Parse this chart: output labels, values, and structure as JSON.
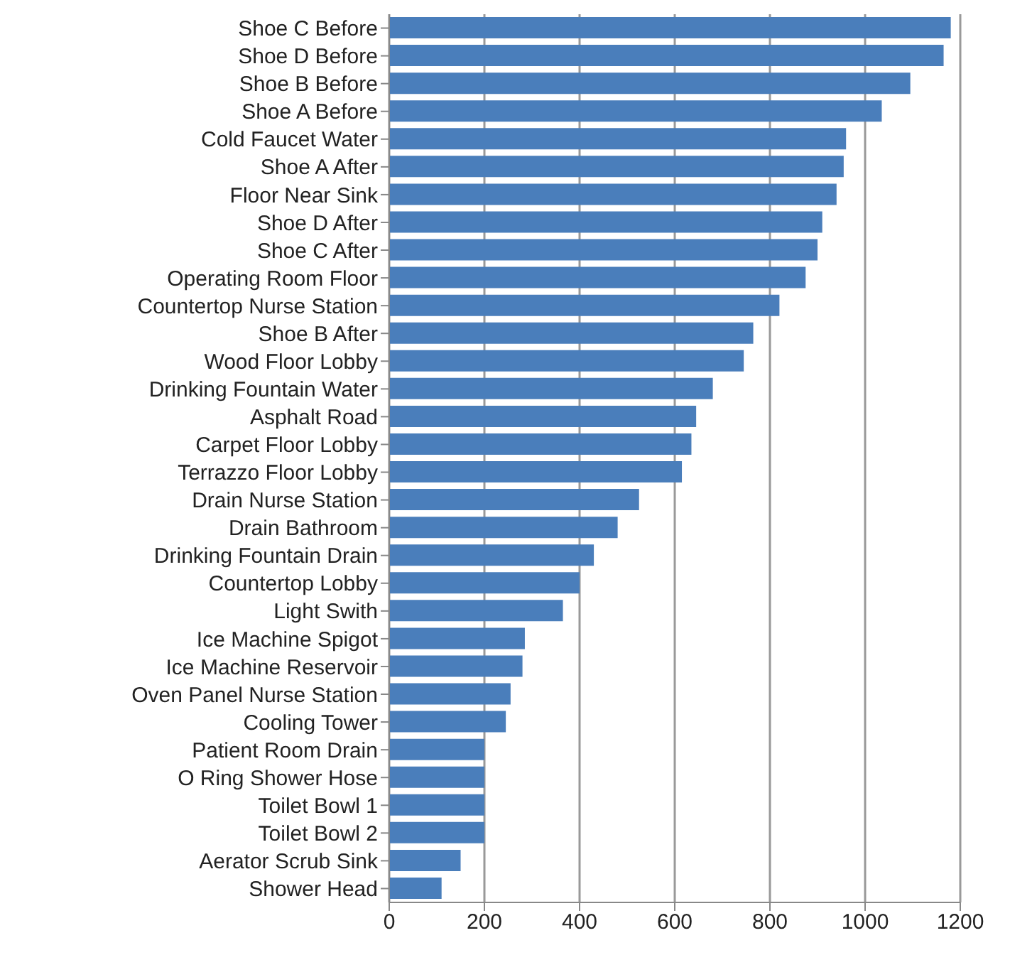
{
  "chart_data": {
    "type": "bar",
    "orientation": "horizontal",
    "categories": [
      "Shoe C Before",
      "Shoe D Before",
      "Shoe B Before",
      "Shoe A Before",
      "Cold Faucet Water",
      "Shoe A After",
      "Floor Near Sink",
      "Shoe D After",
      "Shoe C After",
      "Operating Room Floor",
      "Countertop Nurse Station",
      "Shoe B After",
      "Wood Floor Lobby",
      "Drinking Fountain Water",
      "Asphalt Road",
      "Carpet Floor Lobby",
      "Terrazzo Floor Lobby",
      "Drain Nurse Station",
      "Drain Bathroom",
      "Drinking Fountain Drain",
      "Countertop Lobby",
      "Light Swith",
      "Ice Machine Spigot",
      "Ice Machine Reservoir",
      "Oven Panel Nurse Station",
      "Cooling Tower",
      "Patient Room Drain",
      "O Ring Shower Hose",
      "Toilet Bowl 1",
      "Toilet Bowl 2",
      "Aerator Scrub Sink",
      "Shower Head"
    ],
    "values": [
      1180,
      1165,
      1095,
      1035,
      960,
      955,
      940,
      910,
      900,
      875,
      820,
      765,
      745,
      680,
      645,
      635,
      615,
      525,
      480,
      430,
      400,
      365,
      285,
      280,
      255,
      245,
      200,
      200,
      200,
      200,
      150,
      110
    ],
    "color": "#4a7ebb",
    "xlim": [
      0,
      1200
    ],
    "xticks": [
      0,
      200,
      400,
      600,
      800,
      1000,
      1200
    ],
    "grid": "x",
    "legend": false
  }
}
